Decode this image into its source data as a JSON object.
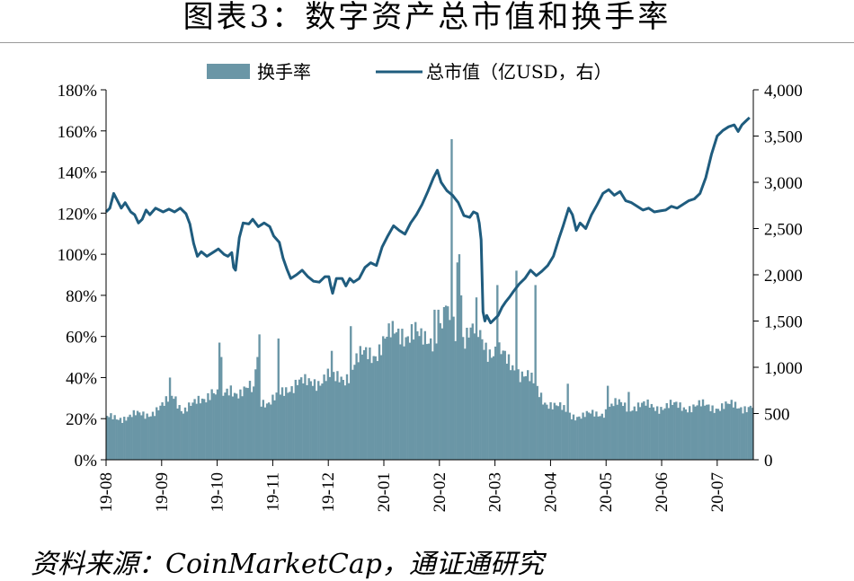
{
  "title": "图表3：数字资产总市值和换手率",
  "source": "资料来源：CoinMarketCap，通证通研究",
  "chart_data": {
    "type": "bar+line",
    "title": "图表3：数字资产总市值和换手率",
    "legend_position": "top-center",
    "grid": false,
    "x_tick_labels": [
      "19-08",
      "19-09",
      "19-10",
      "19-11",
      "19-12",
      "20-01",
      "20-02",
      "20-03",
      "20-04",
      "20-05",
      "20-06",
      "20-07"
    ],
    "y_left": {
      "ticks": [
        "0%",
        "20%",
        "40%",
        "60%",
        "80%",
        "100%",
        "120%",
        "140%",
        "160%",
        "180%"
      ],
      "range": [
        0,
        180
      ],
      "unit": "%"
    },
    "y_right": {
      "ticks": [
        "0",
        "500",
        "1,000",
        "1,500",
        "2,000",
        "2,500",
        "3,000",
        "3,500",
        "4,000"
      ],
      "range": [
        0,
        4000
      ]
    },
    "series": [
      {
        "name": "换手率",
        "type": "bar",
        "axis": "left",
        "color": "#6a96a6",
        "anchors": [
          [
            0,
            20
          ],
          [
            10,
            21
          ],
          [
            20,
            22
          ],
          [
            30,
            26
          ],
          [
            35,
            32
          ],
          [
            40,
            24
          ],
          [
            45,
            26
          ],
          [
            50,
            30
          ],
          [
            55,
            34
          ],
          [
            60,
            29
          ],
          [
            65,
            35
          ],
          [
            70,
            33
          ],
          [
            75,
            34
          ],
          [
            80,
            30
          ],
          [
            85,
            28
          ],
          [
            90,
            30
          ],
          [
            95,
            35
          ],
          [
            100,
            39
          ],
          [
            105,
            36
          ],
          [
            110,
            38
          ],
          [
            115,
            42
          ],
          [
            120,
            38
          ],
          [
            125,
            40
          ],
          [
            130,
            48
          ],
          [
            135,
            50
          ],
          [
            140,
            52
          ],
          [
            145,
            58
          ],
          [
            150,
            60
          ],
          [
            155,
            63
          ],
          [
            160,
            62
          ],
          [
            165,
            57
          ],
          [
            170,
            60
          ],
          [
            175,
            65
          ],
          [
            180,
            68
          ],
          [
            185,
            60
          ],
          [
            190,
            62
          ],
          [
            195,
            60
          ],
          [
            200,
            55
          ],
          [
            205,
            53
          ],
          [
            210,
            47
          ],
          [
            215,
            45
          ],
          [
            220,
            41
          ],
          [
            225,
            35
          ],
          [
            230,
            29
          ],
          [
            235,
            26
          ],
          [
            240,
            24
          ],
          [
            245,
            22
          ],
          [
            250,
            21
          ],
          [
            255,
            22
          ],
          [
            260,
            23
          ],
          [
            265,
            26
          ],
          [
            270,
            27
          ],
          [
            275,
            26
          ],
          [
            280,
            26
          ],
          [
            285,
            26
          ]
        ],
        "spikes": [
          [
            33,
            40
          ],
          [
            59,
            57
          ],
          [
            60,
            50
          ],
          [
            78,
            44
          ],
          [
            79,
            50
          ],
          [
            80,
            61
          ],
          [
            90,
            59
          ],
          [
            118,
            53
          ],
          [
            128,
            65
          ],
          [
            152,
            62
          ],
          [
            162,
            67
          ],
          [
            172,
            73
          ],
          [
            174,
            73
          ],
          [
            178,
            75
          ],
          [
            180,
            68
          ],
          [
            181,
            156
          ],
          [
            184,
            96
          ],
          [
            185,
            100
          ],
          [
            186,
            80
          ],
          [
            194,
            79
          ],
          [
            205,
            85
          ],
          [
            215,
            92
          ],
          [
            225,
            85
          ],
          [
            242,
            37
          ],
          [
            263,
            36
          ],
          [
            274,
            33
          ]
        ]
      },
      {
        "name": "总市值（亿USD，右）",
        "type": "line",
        "axis": "right",
        "color": "#1f5c7e",
        "points": [
          [
            0,
            2680
          ],
          [
            2,
            2720
          ],
          [
            4,
            2880
          ],
          [
            6,
            2800
          ],
          [
            8,
            2720
          ],
          [
            10,
            2780
          ],
          [
            13,
            2680
          ],
          [
            15,
            2650
          ],
          [
            17,
            2560
          ],
          [
            19,
            2600
          ],
          [
            21,
            2700
          ],
          [
            23,
            2650
          ],
          [
            26,
            2720
          ],
          [
            30,
            2680
          ],
          [
            33,
            2710
          ],
          [
            36,
            2680
          ],
          [
            39,
            2720
          ],
          [
            42,
            2660
          ],
          [
            44,
            2550
          ],
          [
            46,
            2340
          ],
          [
            48,
            2200
          ],
          [
            50,
            2250
          ],
          [
            53,
            2200
          ],
          [
            56,
            2240
          ],
          [
            59,
            2280
          ],
          [
            62,
            2220
          ],
          [
            64,
            2200
          ],
          [
            66,
            2240
          ],
          [
            67,
            2080
          ],
          [
            68,
            2050
          ],
          [
            70,
            2400
          ],
          [
            72,
            2560
          ],
          [
            75,
            2550
          ],
          [
            77,
            2600
          ],
          [
            80,
            2520
          ],
          [
            83,
            2560
          ],
          [
            86,
            2520
          ],
          [
            88,
            2420
          ],
          [
            91,
            2350
          ],
          [
            93,
            2180
          ],
          [
            95,
            2060
          ],
          [
            97,
            1960
          ],
          [
            100,
            2000
          ],
          [
            103,
            2050
          ],
          [
            106,
            1980
          ],
          [
            109,
            1930
          ],
          [
            112,
            1920
          ],
          [
            115,
            1980
          ],
          [
            117,
            1980
          ],
          [
            118,
            1880
          ],
          [
            119,
            1800
          ],
          [
            121,
            1960
          ],
          [
            124,
            1960
          ],
          [
            126,
            1880
          ],
          [
            128,
            1960
          ],
          [
            130,
            1920
          ],
          [
            133,
            1960
          ],
          [
            136,
            2080
          ],
          [
            139,
            2130
          ],
          [
            142,
            2100
          ],
          [
            145,
            2300
          ],
          [
            148,
            2420
          ],
          [
            151,
            2530
          ],
          [
            154,
            2480
          ],
          [
            157,
            2440
          ],
          [
            160,
            2560
          ],
          [
            163,
            2650
          ],
          [
            166,
            2760
          ],
          [
            169,
            2900
          ],
          [
            172,
            3050
          ],
          [
            174,
            3130
          ],
          [
            176,
            3000
          ],
          [
            179,
            2910
          ],
          [
            182,
            2860
          ],
          [
            185,
            2780
          ],
          [
            188,
            2640
          ],
          [
            191,
            2620
          ],
          [
            193,
            2680
          ],
          [
            195,
            2660
          ],
          [
            196,
            2560
          ],
          [
            197,
            2380
          ],
          [
            198,
            1600
          ],
          [
            199,
            1500
          ],
          [
            200,
            1560
          ],
          [
            202,
            1480
          ],
          [
            204,
            1520
          ],
          [
            206,
            1560
          ],
          [
            208,
            1650
          ],
          [
            210,
            1710
          ],
          [
            212,
            1760
          ],
          [
            214,
            1820
          ],
          [
            217,
            1900
          ],
          [
            220,
            1960
          ],
          [
            223,
            2050
          ],
          [
            226,
            1990
          ],
          [
            229,
            2040
          ],
          [
            232,
            2100
          ],
          [
            235,
            2200
          ],
          [
            238,
            2400
          ],
          [
            240,
            2520
          ],
          [
            243,
            2720
          ],
          [
            245,
            2650
          ],
          [
            247,
            2480
          ],
          [
            249,
            2560
          ],
          [
            252,
            2500
          ],
          [
            255,
            2650
          ],
          [
            258,
            2760
          ],
          [
            261,
            2880
          ],
          [
            264,
            2920
          ],
          [
            267,
            2860
          ],
          [
            270,
            2900
          ],
          [
            273,
            2800
          ],
          [
            276,
            2780
          ],
          [
            279,
            2740
          ],
          [
            282,
            2700
          ],
          [
            285,
            2720
          ],
          [
            288,
            2680
          ],
          [
            291,
            2690
          ],
          [
            294,
            2700
          ],
          [
            297,
            2740
          ],
          [
            300,
            2720
          ],
          [
            303,
            2760
          ],
          [
            306,
            2800
          ],
          [
            309,
            2820
          ],
          [
            312,
            2880
          ],
          [
            315,
            3050
          ],
          [
            318,
            3300
          ],
          [
            321,
            3500
          ],
          [
            324,
            3560
          ],
          [
            327,
            3600
          ],
          [
            330,
            3620
          ],
          [
            332,
            3550
          ],
          [
            334,
            3620
          ],
          [
            336,
            3660
          ],
          [
            338,
            3700
          ]
        ]
      }
    ]
  }
}
